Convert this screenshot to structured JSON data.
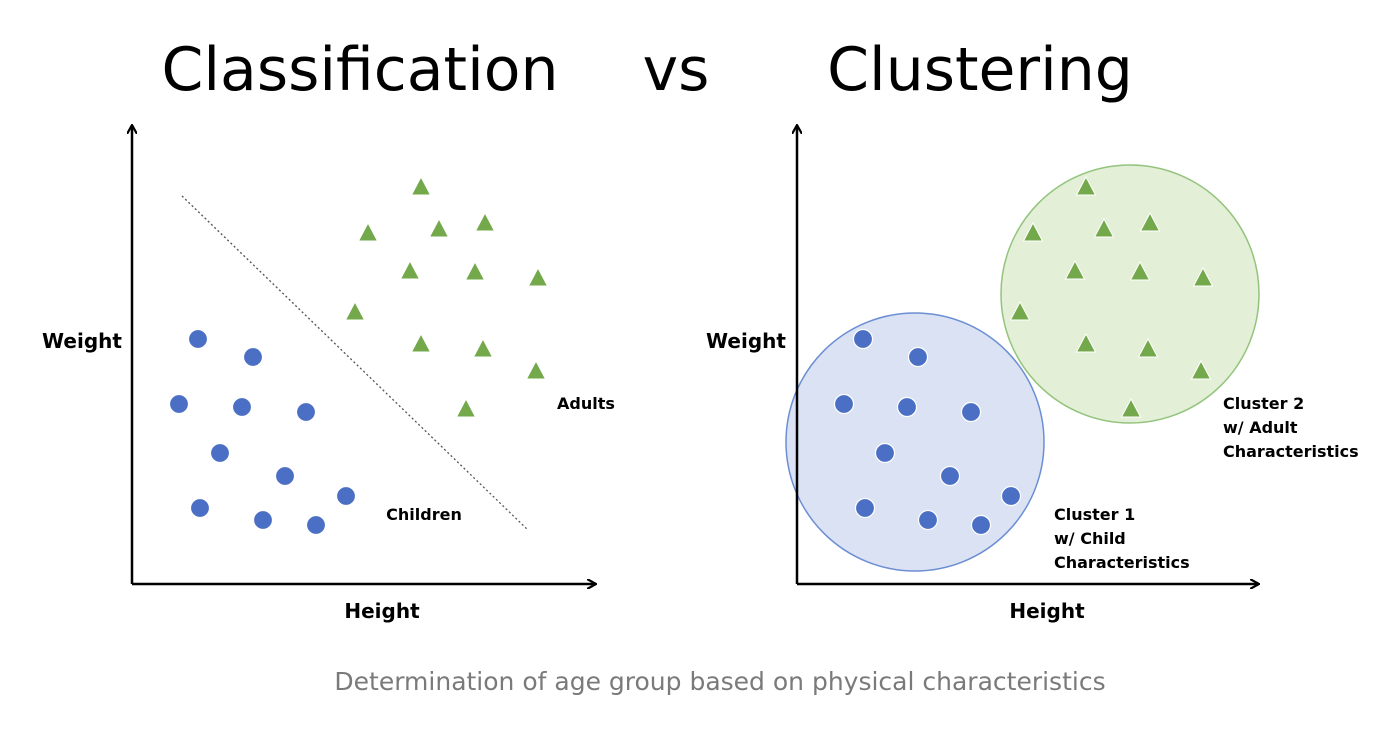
{
  "title": {
    "left": "Classification",
    "middle": "vs",
    "right": "Clustering"
  },
  "colors": {
    "circle_points": "#4a6fc4",
    "triangle_points": "#73a84b",
    "axis": "#000000",
    "cluster1_fill": "#dbe2f3",
    "cluster1_stroke": "#6b8ed4",
    "cluster2_fill": "#e3efd6",
    "cluster2_stroke": "#93c47d",
    "caption": "#7a7a7a"
  },
  "classification": {
    "y_axis_label": "Weight",
    "x_axis_label": "Height",
    "class_labels": {
      "children": "Children",
      "adults": "Adults"
    },
    "point_shapes": {
      "children": "circle",
      "adults": "triangle"
    }
  },
  "clustering": {
    "y_axis_label": "Weight",
    "x_axis_label": "Height",
    "cluster1_label": [
      "Cluster 1",
      "w/ Child",
      "Characteristics"
    ],
    "cluster2_label": [
      "Cluster 2",
      "w/ Adult",
      "Characteristics"
    ]
  },
  "caption": "Determination of age group based on physical characteristics"
}
